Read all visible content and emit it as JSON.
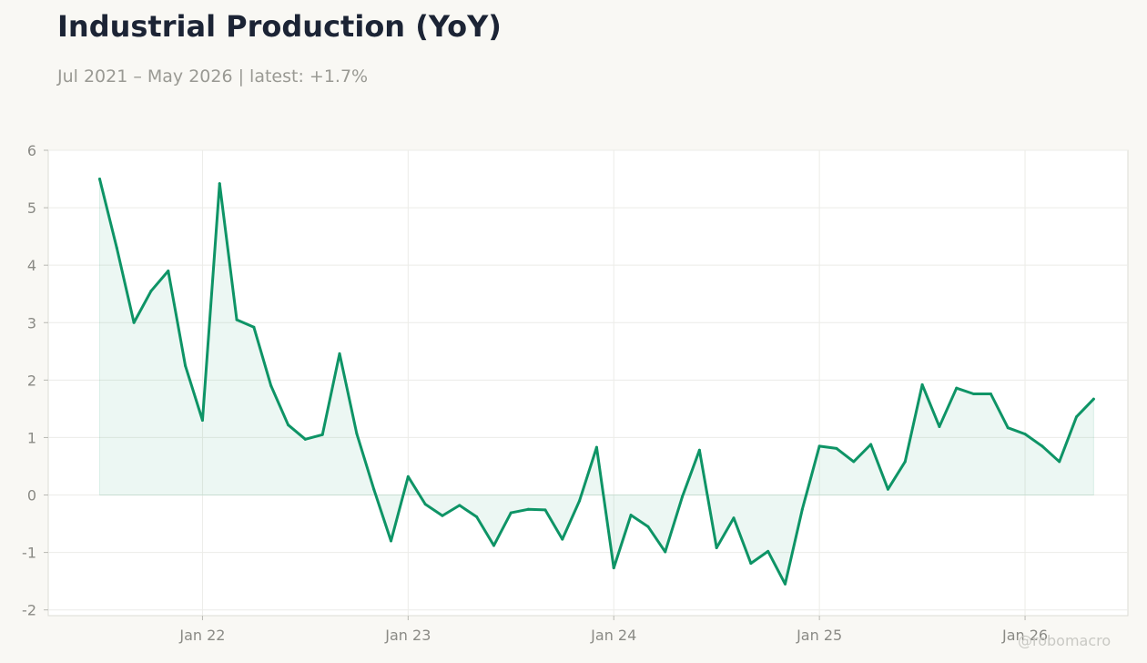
{
  "chart_data": {
    "type": "area",
    "title": "Industrial Production (YoY)",
    "subtitle": "Jul 2021 – May 2026 | latest: +1.7%",
    "xlabel": "",
    "ylabel": "",
    "ylim": [
      -2.1,
      6.0
    ],
    "yticks": [
      6,
      5,
      4,
      3,
      2,
      1,
      0,
      -1,
      -2
    ],
    "ytick_labels": [
      "6",
      "5",
      "4",
      "3",
      "2",
      "1",
      "0",
      "-1",
      "-2"
    ],
    "xticks": [
      "2022-01",
      "2023-01",
      "2024-01",
      "2025-01",
      "2026-01"
    ],
    "xtick_labels": [
      "Jan 22",
      "Jan 23",
      "Jan 24",
      "Jan 25",
      "Jan 26"
    ],
    "xlim": [
      "2021-04",
      "2026-07"
    ],
    "grid": true,
    "legend": "none",
    "series": [
      {
        "color": "#0e9466",
        "x": [
          "2021-07",
          "2021-08",
          "2021-09",
          "2021-10",
          "2021-11",
          "2021-12",
          "2022-01",
          "2022-02",
          "2022-03",
          "2022-04",
          "2022-05",
          "2022-06",
          "2022-07",
          "2022-08",
          "2022-09",
          "2022-10",
          "2022-11",
          "2022-12",
          "2023-01",
          "2023-02",
          "2023-03",
          "2023-04",
          "2023-05",
          "2023-06",
          "2023-07",
          "2023-08",
          "2023-09",
          "2023-10",
          "2023-11",
          "2023-12",
          "2024-01",
          "2024-02",
          "2024-03",
          "2024-04",
          "2024-05",
          "2024-06",
          "2024-07",
          "2024-08",
          "2024-09",
          "2024-10",
          "2024-11",
          "2024-12",
          "2025-01",
          "2025-02",
          "2025-03",
          "2025-04",
          "2025-05",
          "2025-06",
          "2025-07",
          "2025-08",
          "2025-09",
          "2025-10",
          "2025-11",
          "2025-12",
          "2026-01",
          "2026-02",
          "2026-03",
          "2026-04",
          "2026-05"
        ],
        "values": [
          5.5,
          4.3,
          3.0,
          3.55,
          3.9,
          2.25,
          1.3,
          5.42,
          3.05,
          2.92,
          1.9,
          1.22,
          0.97,
          1.05,
          2.46,
          1.07,
          0.1,
          -0.8,
          0.32,
          -0.16,
          -0.36,
          -0.18,
          -0.38,
          -0.88,
          -0.31,
          -0.25,
          -0.26,
          -0.77,
          -0.1,
          0.83,
          -1.27,
          -0.35,
          -0.55,
          -0.99,
          -0.03,
          0.78,
          -0.92,
          -0.4,
          -1.19,
          -0.98,
          -1.55,
          -0.25,
          0.85,
          0.81,
          0.58,
          0.88,
          0.1,
          0.58,
          1.92,
          1.19,
          1.86,
          1.76,
          1.76,
          1.17,
          1.06,
          0.85,
          0.58,
          1.36,
          1.67
        ]
      }
    ]
  },
  "watermark": "@robomacro"
}
